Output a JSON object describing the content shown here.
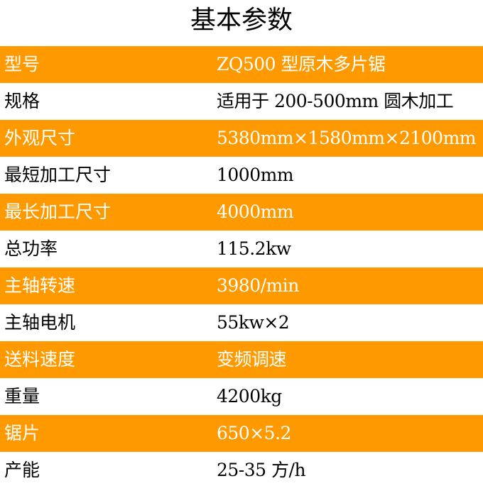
{
  "title": "基本参数",
  "highlight_color": "#ff9900",
  "rows": [
    {
      "label": "型号",
      "value": "ZQ500 型原木多片锯"
    },
    {
      "label": "规格",
      "value": "适用于 200-500mm 圆木加工"
    },
    {
      "label": "外观尺寸",
      "value": "5380mm×1580mm×2100mm"
    },
    {
      "label": "最短加工尺寸",
      "value": "1000mm"
    },
    {
      "label": "最长加工尺寸",
      "value": "4000mm"
    },
    {
      "label": "总功率",
      "value": "115.2kw"
    },
    {
      "label": "主轴转速",
      "value": "3980/min"
    },
    {
      "label": "主轴电机",
      "value": "55kw×2"
    },
    {
      "label": "送料速度",
      "value": "变频调速"
    },
    {
      "label": "重量",
      "value": "4200kg"
    },
    {
      "label": "锯片",
      "value": "650×5.2"
    },
    {
      "label": "产能",
      "value": "25-35 方/h"
    }
  ]
}
